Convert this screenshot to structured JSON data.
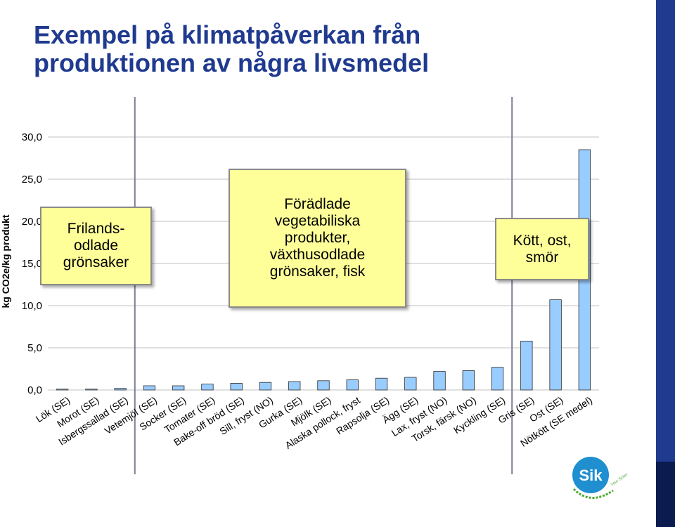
{
  "slide": {
    "title_lines": [
      "Exempel på klimatpåverkan från",
      "produktionen av några livsmedel"
    ]
  },
  "callouts": {
    "a": [
      "Frilands-",
      "odlade",
      "grönsaker"
    ],
    "b": [
      "Förädlade",
      "vegetabiliska",
      "produkter,",
      "växthusodlade",
      "grönsaker, fisk"
    ],
    "c": [
      "Kött, ost,",
      "smör"
    ]
  },
  "logo": {
    "wordmark": "Sik",
    "ring_text": "Your Science Partner"
  },
  "colors": {
    "title": "#1f3a8f",
    "bar_fill": "#99ccff",
    "bar_stroke": "#2c2c2c",
    "gridline": "#c0c0c0",
    "divider": "#7a7f96",
    "callout_fill": "#ffff99",
    "side_bar": "#1f3a8f",
    "logo_blue": "#1f8fd0",
    "logo_green": "#4aa832"
  },
  "chart_data": {
    "type": "bar",
    "ylabel": "kg CO2e/kg produkt",
    "ylim": [
      0,
      30
    ],
    "ytick_labels": [
      "0,0",
      "5,0",
      "10,0",
      "15,0",
      "20,0",
      "25,0",
      "30,0"
    ],
    "ytick_values": [
      0,
      5,
      10,
      15,
      20,
      25,
      30
    ],
    "grid": true,
    "categories": [
      "Lök (SE)",
      "Morot (SE)",
      "Isbergssallad (SE)",
      "Vetemjöl (SE)",
      "Socker (SE)",
      "Tomater (SE)",
      "Bake-off bröd (SE)",
      "Sill, fryst (NO)",
      "Gurka (SE)",
      "Mjölk (SE)",
      "Alaska pollock, fryst",
      "Rapsolja (SE)",
      "Ägg (SE)",
      "Lax, fryst (NO)",
      "Torsk, färsk (NO)",
      "Kyckling (SE)",
      "Gris (SE)",
      "Ost (SE)",
      "Nötkött (SE medel)"
    ],
    "values": [
      0.1,
      0.1,
      0.2,
      0.5,
      0.5,
      0.7,
      0.8,
      0.9,
      1.0,
      1.1,
      1.2,
      1.4,
      1.5,
      2.2,
      2.3,
      2.7,
      5.8,
      10.7,
      28.5
    ],
    "group_dividers_after_index": [
      2,
      15
    ]
  }
}
